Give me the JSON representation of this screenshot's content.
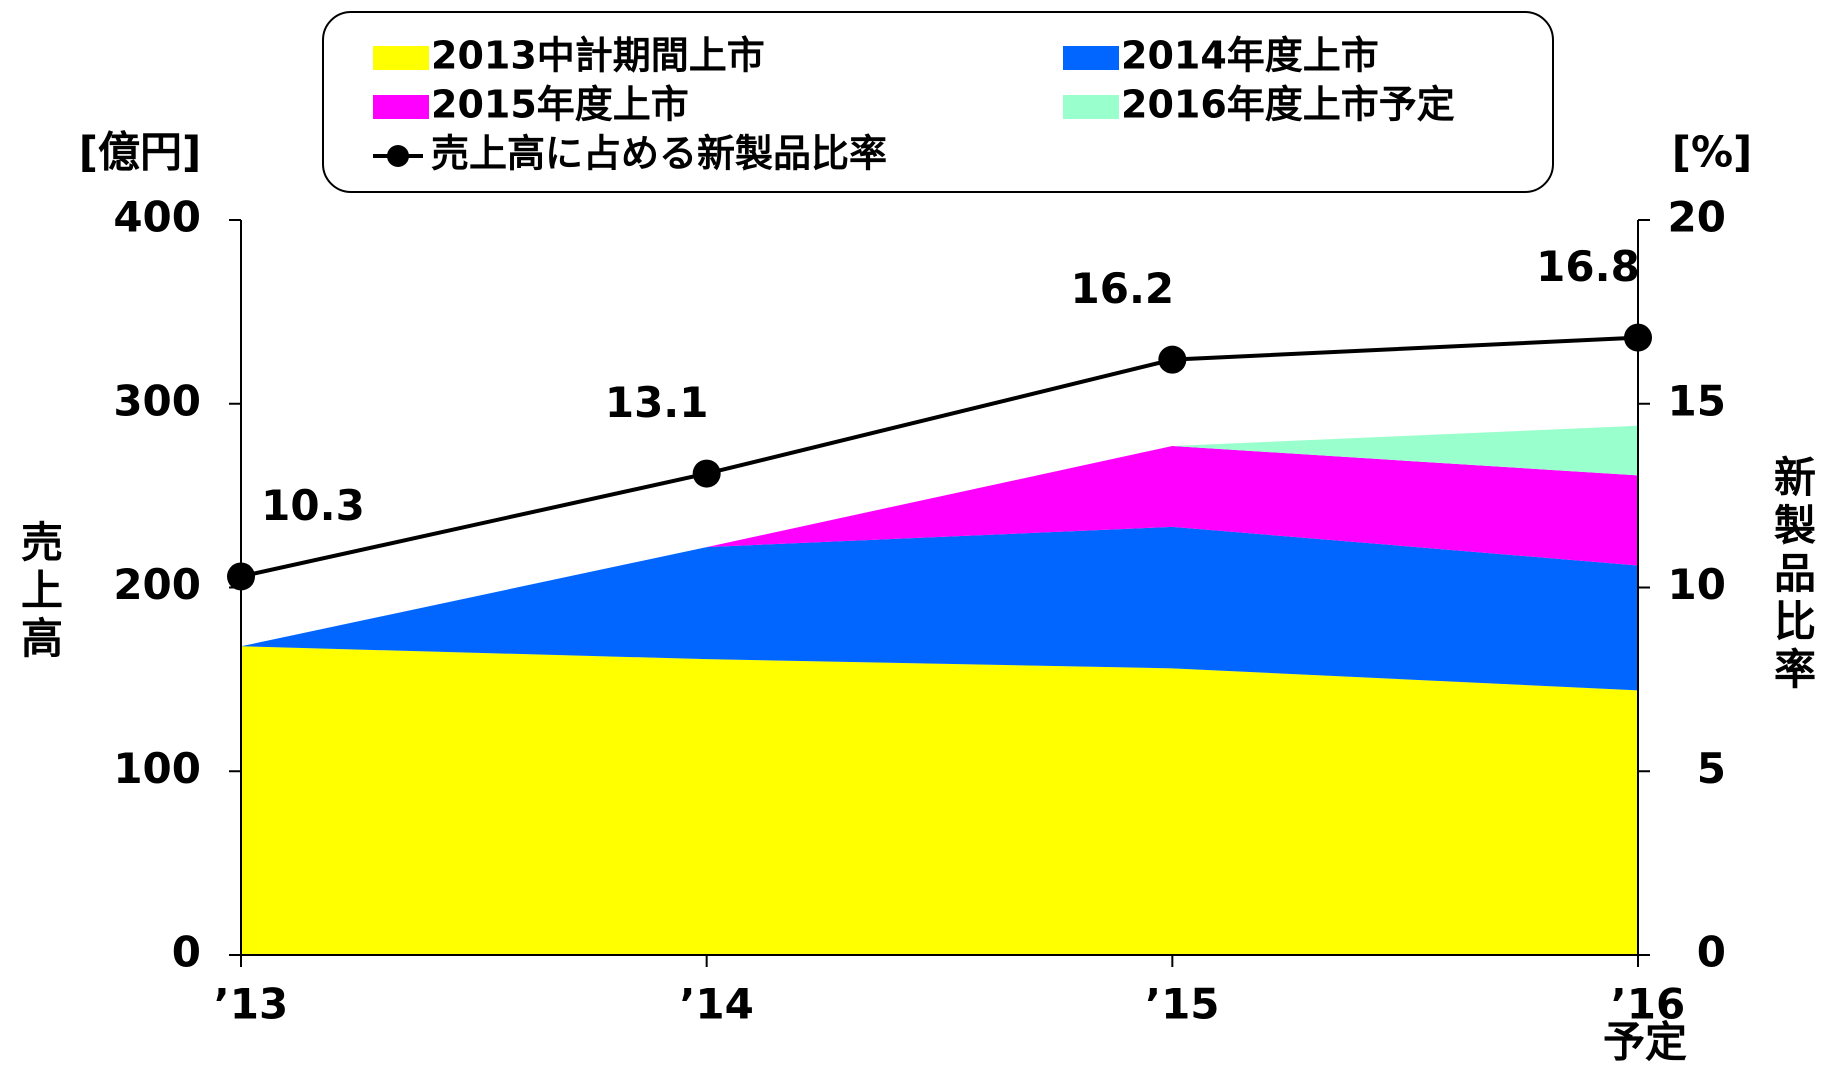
{
  "chart_data": {
    "type": "stacked_area_line",
    "categories": [
      "’13",
      "’14",
      "’15",
      "’16"
    ],
    "category_note": "予定",
    "y_label": "売上高",
    "y_unit": "[億円]",
    "y2_label": "新製品比率",
    "y2_unit": "[%]",
    "ylim": [
      0,
      400
    ],
    "yticks": [
      0,
      100,
      200,
      300,
      400
    ],
    "y2lim": [
      0,
      20
    ],
    "y2ticks": [
      0,
      5,
      10,
      15,
      20
    ],
    "series": [
      {
        "name": "2013中計期間上市",
        "color": "#ffff00",
        "values": [
          168,
          161,
          156,
          144
        ]
      },
      {
        "name": "2014年度上市",
        "color": "#0066ff",
        "values": [
          0,
          61,
          77,
          68
        ]
      },
      {
        "name": "2015年度上市",
        "color": "#ff00ff",
        "values": [
          0,
          0,
          44,
          49
        ]
      },
      {
        "name": "2016年度上市予定",
        "color": "#99ffcc",
        "values": [
          0,
          0,
          0,
          27
        ]
      },
      {
        "name": "売上高に占める新製品比率",
        "color": "#000000",
        "axis": "y2",
        "values": [
          10.3,
          13.1,
          16.2,
          16.8
        ]
      }
    ]
  }
}
